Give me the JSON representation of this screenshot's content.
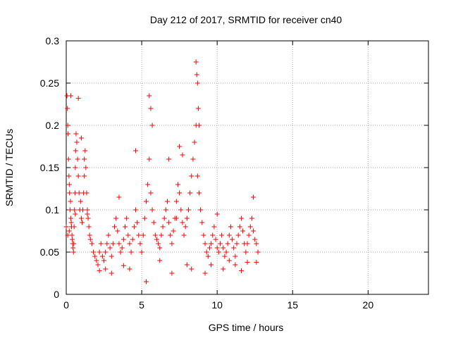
{
  "chart_data": {
    "type": "scatter",
    "title": "Day 212 of 2017, SRMTID for receiver cn40",
    "xlabel": "GPS time / hours",
    "ylabel": "SRMTID / TECUs",
    "xlim": [
      0,
      24
    ],
    "ylim": [
      0,
      0.3
    ],
    "x_ticks": [
      0,
      5,
      10,
      15,
      20
    ],
    "x_tick_labels": [
      "0",
      "5",
      "10",
      "15",
      "20"
    ],
    "y_ticks": [
      0,
      0.05,
      0.1,
      0.15,
      0.2,
      0.25,
      0.3
    ],
    "y_tick_labels": [
      "0",
      "0.05",
      "0.1",
      "0.15",
      "0.2",
      "0.25",
      "0.3"
    ],
    "grid": true,
    "marker": "+",
    "marker_color": "#ff0000",
    "series": [
      {
        "x": [
          0.0,
          0.05,
          0.08,
          0.1,
          0.12,
          0.15,
          0.18,
          0.2,
          0.22,
          0.25,
          0.28,
          0.3,
          0.33,
          0.35,
          0.38,
          0.4,
          0.42,
          0.45,
          0.48,
          0.5,
          0.52,
          0.55,
          0.58,
          0.6,
          0.62,
          0.65,
          0.7,
          0.75,
          0.8,
          0.85,
          0.9,
          0.95,
          1.0,
          1.05,
          1.1,
          1.15,
          1.2,
          1.25,
          1.3,
          1.35,
          1.4,
          1.45,
          1.5,
          1.55,
          1.6,
          1.7,
          1.8,
          1.9,
          2.0,
          2.1,
          2.2,
          2.3,
          2.4,
          2.5,
          2.6,
          2.7,
          2.8,
          2.9,
          3.0,
          3.1,
          3.2,
          3.3,
          3.4,
          3.5,
          3.6,
          3.7,
          3.8,
          3.9,
          4.0,
          4.1,
          4.2,
          4.3,
          4.4,
          4.5,
          4.6,
          4.7,
          4.8,
          4.9,
          5.0,
          5.1,
          5.2,
          5.3,
          5.4,
          5.5,
          5.6,
          5.7,
          5.8,
          5.9,
          6.0,
          6.1,
          6.2,
          6.3,
          6.4,
          6.5,
          6.6,
          6.7,
          6.8,
          6.9,
          7.0,
          7.1,
          7.2,
          7.3,
          7.4,
          7.5,
          7.6,
          7.7,
          7.8,
          7.9,
          8.0,
          8.1,
          8.2,
          8.3,
          8.4,
          8.5,
          8.6,
          8.7,
          8.8,
          8.9,
          9.0,
          9.1,
          9.2,
          9.3,
          9.4,
          9.5,
          9.6,
          9.7,
          9.8,
          9.9,
          10.0,
          10.1,
          10.2,
          10.3,
          10.4,
          10.5,
          10.6,
          10.7,
          10.8,
          10.9,
          11.0,
          11.1,
          11.2,
          11.3,
          11.4,
          11.5,
          11.6,
          11.7,
          11.8,
          11.9,
          12.0,
          12.1,
          12.2,
          12.3,
          12.4,
          12.5,
          12.6,
          12.7,
          0.1,
          0.2,
          0.3,
          0.6,
          0.8,
          1.0,
          1.2,
          1.4,
          2.2,
          2.6,
          3.0,
          3.5,
          3.8,
          4.2,
          4.6,
          5.3,
          5.5,
          5.6,
          5.7,
          6.2,
          6.8,
          7.0,
          7.3,
          7.5,
          7.7,
          8.0,
          8.3,
          8.6,
          8.65,
          8.7,
          8.75,
          8.8,
          9.2,
          9.6,
          10.0,
          10.4,
          10.8,
          11.2,
          11.6,
          12.0,
          12.4,
          12.6
        ],
        "y": [
          0.08,
          0.235,
          0.22,
          0.2,
          0.19,
          0.16,
          0.14,
          0.13,
          0.12,
          0.1,
          0.11,
          0.09,
          0.085,
          0.08,
          0.07,
          0.065,
          0.06,
          0.055,
          0.05,
          0.06,
          0.08,
          0.1,
          0.12,
          0.15,
          0.17,
          0.19,
          0.18,
          0.16,
          0.14,
          0.12,
          0.1,
          0.11,
          0.09,
          0.085,
          0.1,
          0.12,
          0.14,
          0.17,
          0.15,
          0.12,
          0.1,
          0.09,
          0.08,
          0.07,
          0.065,
          0.06,
          0.05,
          0.045,
          0.04,
          0.035,
          0.05,
          0.06,
          0.045,
          0.04,
          0.05,
          0.06,
          0.07,
          0.055,
          0.045,
          0.06,
          0.08,
          0.09,
          0.075,
          0.06,
          0.05,
          0.055,
          0.065,
          0.08,
          0.09,
          0.07,
          0.06,
          0.05,
          0.065,
          0.08,
          0.1,
          0.085,
          0.07,
          0.06,
          0.05,
          0.07,
          0.09,
          0.11,
          0.13,
          0.16,
          0.12,
          0.1,
          0.085,
          0.07,
          0.065,
          0.06,
          0.055,
          0.07,
          0.08,
          0.09,
          0.1,
          0.11,
          0.085,
          0.07,
          0.06,
          0.075,
          0.09,
          0.11,
          0.13,
          0.12,
          0.1,
          0.085,
          0.07,
          0.08,
          0.09,
          0.1,
          0.12,
          0.14,
          0.16,
          0.18,
          0.2,
          0.14,
          0.12,
          0.1,
          0.085,
          0.07,
          0.06,
          0.05,
          0.045,
          0.055,
          0.06,
          0.07,
          0.08,
          0.065,
          0.055,
          0.05,
          0.06,
          0.07,
          0.055,
          0.045,
          0.05,
          0.06,
          0.07,
          0.08,
          0.065,
          0.055,
          0.045,
          0.06,
          0.07,
          0.08,
          0.09,
          0.075,
          0.06,
          0.05,
          0.06,
          0.07,
          0.08,
          0.09,
          0.075,
          0.065,
          0.06,
          0.05,
          0.07,
          0.075,
          0.235,
          0.095,
          0.232,
          0.185,
          0.16,
          0.095,
          0.028,
          0.03,
          0.025,
          0.115,
          0.034,
          0.03,
          0.17,
          0.015,
          0.235,
          0.22,
          0.2,
          0.04,
          0.16,
          0.025,
          0.09,
          0.175,
          0.165,
          0.035,
          0.03,
          0.275,
          0.26,
          0.25,
          0.22,
          0.2,
          0.025,
          0.035,
          0.095,
          0.03,
          0.04,
          0.035,
          0.028,
          0.038,
          0.115,
          0.038
        ]
      }
    ]
  }
}
